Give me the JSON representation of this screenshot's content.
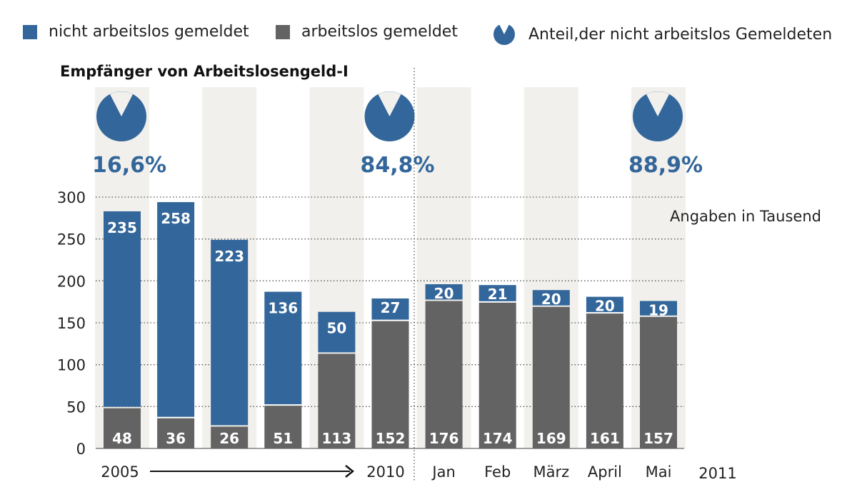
{
  "legend": {
    "blue": "nicht arbeitslos gemeldet",
    "gray": "arbeitslos gemeldet",
    "pie": "Anteil,der nicht arbeitslos Gemeldeten"
  },
  "chart_data": {
    "type": "bar",
    "stacked": true,
    "title": "Empfänger von Arbeitslosengeld-I",
    "note": "Angaben in Tausend",
    "categories": [
      "2005",
      "",
      "",
      "",
      "",
      "2010",
      "Jan",
      "Feb",
      "März",
      "April",
      "Mai"
    ],
    "x_tick_labels": [
      "2005",
      "2010",
      "Jan",
      "Feb",
      "März",
      "April",
      "Mai",
      "2011"
    ],
    "series": [
      {
        "name": "arbeitslos gemeldet",
        "color": "#636363",
        "values": [
          48,
          36,
          26,
          51,
          113,
          152,
          176,
          174,
          169,
          161,
          157
        ]
      },
      {
        "name": "nicht arbeitslos gemeldet",
        "color": "#33669a",
        "values": [
          235,
          258,
          223,
          136,
          50,
          27,
          20,
          21,
          20,
          20,
          19
        ]
      }
    ],
    "pies": [
      {
        "category_index": 0,
        "label": "16,6%"
      },
      {
        "category_index": 5,
        "label": "84,8%"
      },
      {
        "category_index": 10,
        "label": "88,9%"
      }
    ],
    "ylim": [
      0,
      300
    ],
    "yticks": [
      0,
      50,
      100,
      150,
      200,
      250,
      300
    ],
    "grid": "dotted horizontal"
  }
}
